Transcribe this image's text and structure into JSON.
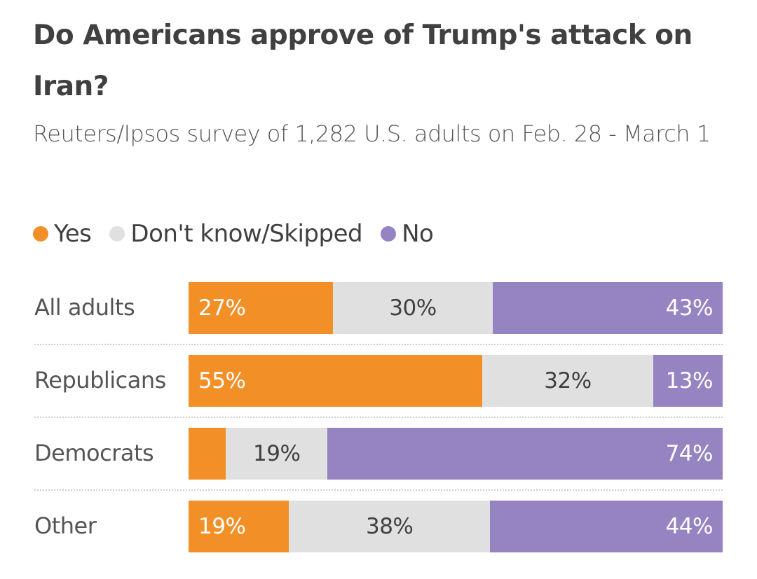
{
  "chart_data": {
    "type": "bar",
    "orientation": "horizontal",
    "stacked": true,
    "title": "Do Americans approve of Trump's attack on Iran?",
    "subtitle": "Reuters/Ipsos survey of 1,282 U.S. adults on Feb. 28 - March 1",
    "categories": [
      "All adults",
      "Republicans",
      "Democrats",
      "Other"
    ],
    "series": [
      {
        "name": "Yes",
        "color": "#f28f27",
        "values": [
          27,
          55,
          7,
          19
        ],
        "labels": [
          "27%",
          "55%",
          null,
          "19%"
        ],
        "text_color": "#ffffff"
      },
      {
        "name": "Don't know/Skipped",
        "color": "#e0e0e0",
        "values": [
          30,
          32,
          19,
          38
        ],
        "labels": [
          "30%",
          "32%",
          "19%",
          "38%"
        ],
        "text_color": "#404040"
      },
      {
        "name": "No",
        "color": "#9683c1",
        "values": [
          43,
          13,
          74,
          44
        ],
        "labels": [
          "43%",
          "13%",
          "74%",
          "44%"
        ],
        "text_color": "#ffffff"
      }
    ],
    "legend": "top-left",
    "grid": false,
    "xlim": [
      0,
      100
    ]
  }
}
